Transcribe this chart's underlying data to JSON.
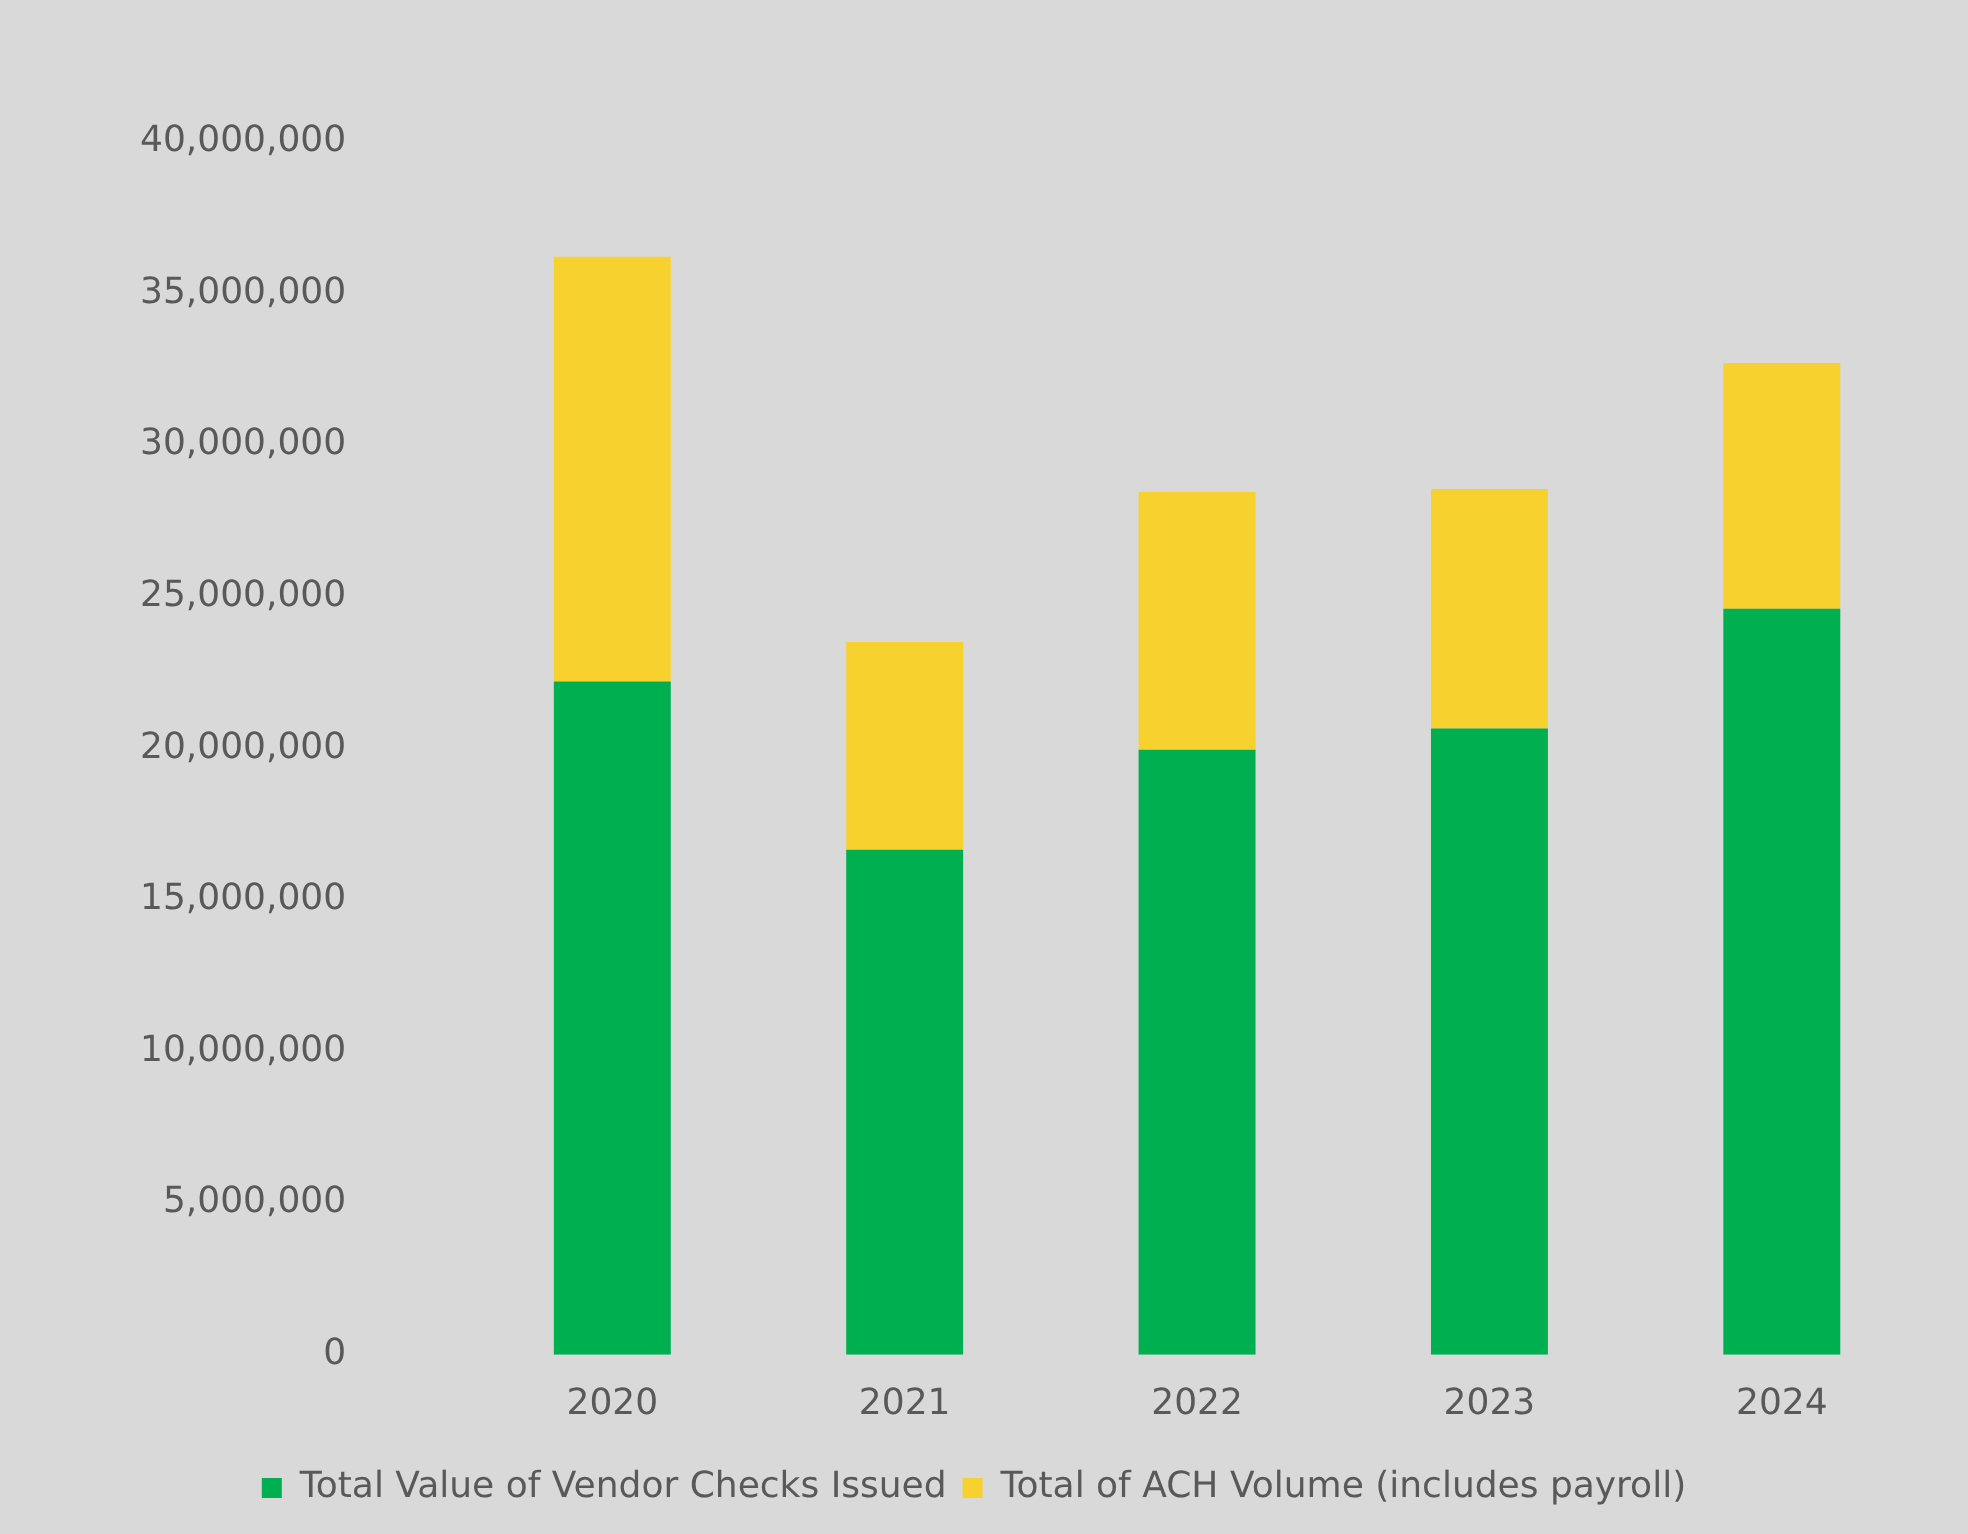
{
  "chart_data": {
    "type": "bar",
    "stacked": true,
    "categories": [
      "2020",
      "2021",
      "2022",
      "2023",
      "2024"
    ],
    "series": [
      {
        "name": "Total Value of Vendor Checks Issued",
        "color": "#00b050",
        "values": [
          22200000,
          16650000,
          19950000,
          20650000,
          24600000
        ]
      },
      {
        "name": "Total of ACH Volume (includes payroll)",
        "color": "#f7d22f",
        "values": [
          14000000,
          6850000,
          8500000,
          7900000,
          8100000
        ]
      }
    ],
    "ylim": [
      0,
      40000000
    ],
    "yticks": [
      {
        "value": 0,
        "label": "0"
      },
      {
        "value": 5000000,
        "label": "5,000,000"
      },
      {
        "value": 10000000,
        "label": "10,000,000"
      },
      {
        "value": 15000000,
        "label": "15,000,000"
      },
      {
        "value": 20000000,
        "label": "20,000,000"
      },
      {
        "value": 25000000,
        "label": "25,000,000"
      },
      {
        "value": 30000000,
        "label": "30,000,000"
      },
      {
        "value": 35000000,
        "label": "35,000,000"
      },
      {
        "value": 40000000,
        "label": "40,000,000"
      }
    ],
    "grid": false,
    "legend": "bottom"
  }
}
